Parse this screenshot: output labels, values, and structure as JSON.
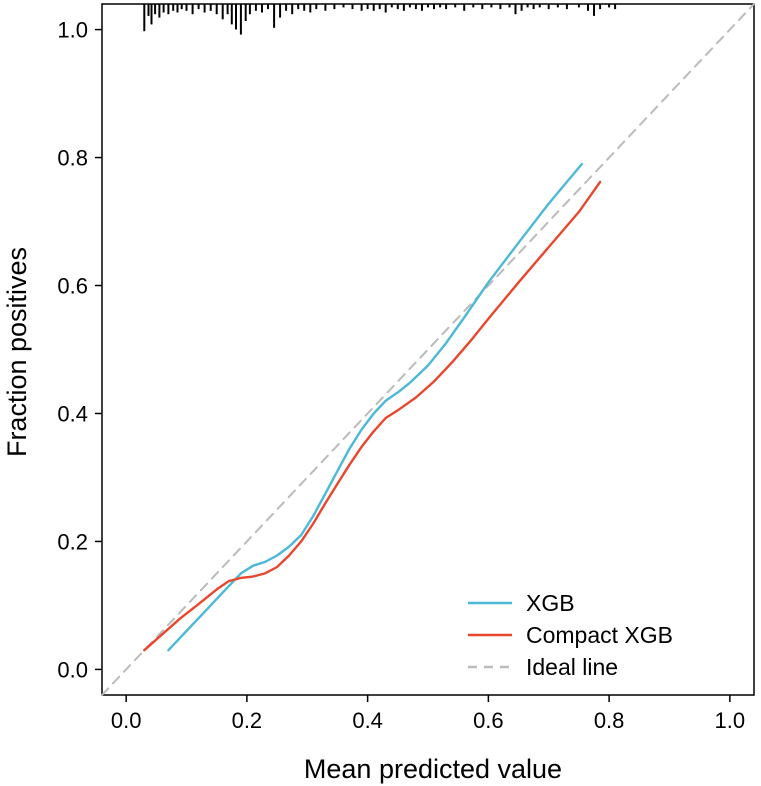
{
  "chart_data": {
    "type": "line",
    "xlabel": "Mean predicted value",
    "ylabel": "Fraction positives",
    "xlim": [
      -0.04,
      1.04
    ],
    "ylim": [
      -0.04,
      1.04
    ],
    "x_ticks": [
      "0.0",
      "0.2",
      "0.4",
      "0.6",
      "0.8",
      "1.0"
    ],
    "y_ticks": [
      "0.0",
      "0.2",
      "0.4",
      "0.6",
      "0.8",
      "1.0"
    ],
    "grid": false,
    "legend_position": "bottom-right",
    "series": [
      {
        "name": "XGB",
        "color": "#4db8d8",
        "points": [
          [
            0.07,
            0.03
          ],
          [
            0.1,
            0.06
          ],
          [
            0.13,
            0.09
          ],
          [
            0.16,
            0.12
          ],
          [
            0.19,
            0.15
          ],
          [
            0.21,
            0.162
          ],
          [
            0.23,
            0.168
          ],
          [
            0.25,
            0.178
          ],
          [
            0.27,
            0.192
          ],
          [
            0.29,
            0.21
          ],
          [
            0.31,
            0.24
          ],
          [
            0.33,
            0.275
          ],
          [
            0.35,
            0.31
          ],
          [
            0.37,
            0.345
          ],
          [
            0.39,
            0.375
          ],
          [
            0.41,
            0.4
          ],
          [
            0.43,
            0.42
          ],
          [
            0.45,
            0.433
          ],
          [
            0.47,
            0.448
          ],
          [
            0.5,
            0.475
          ],
          [
            0.53,
            0.51
          ],
          [
            0.56,
            0.55
          ],
          [
            0.6,
            0.605
          ],
          [
            0.65,
            0.667
          ],
          [
            0.7,
            0.728
          ],
          [
            0.755,
            0.79
          ]
        ]
      },
      {
        "name": "Compact XGB",
        "color": "#e8472e",
        "points": [
          [
            0.03,
            0.03
          ],
          [
            0.06,
            0.055
          ],
          [
            0.09,
            0.08
          ],
          [
            0.12,
            0.102
          ],
          [
            0.15,
            0.125
          ],
          [
            0.17,
            0.138
          ],
          [
            0.19,
            0.143
          ],
          [
            0.21,
            0.145
          ],
          [
            0.23,
            0.15
          ],
          [
            0.25,
            0.16
          ],
          [
            0.27,
            0.178
          ],
          [
            0.29,
            0.2
          ],
          [
            0.31,
            0.228
          ],
          [
            0.33,
            0.26
          ],
          [
            0.35,
            0.29
          ],
          [
            0.37,
            0.32
          ],
          [
            0.39,
            0.348
          ],
          [
            0.41,
            0.372
          ],
          [
            0.43,
            0.393
          ],
          [
            0.45,
            0.405
          ],
          [
            0.48,
            0.425
          ],
          [
            0.51,
            0.45
          ],
          [
            0.54,
            0.48
          ],
          [
            0.57,
            0.513
          ],
          [
            0.6,
            0.548
          ],
          [
            0.65,
            0.605
          ],
          [
            0.7,
            0.66
          ],
          [
            0.75,
            0.715
          ],
          [
            0.785,
            0.762
          ]
        ]
      },
      {
        "name": "Ideal line",
        "color": "#bbbbbb",
        "dashed": true,
        "points": [
          [
            -0.04,
            -0.04
          ],
          [
            1.04,
            1.04
          ]
        ]
      }
    ],
    "rug_color": "#000000",
    "rug": [
      {
        "x": 0.03,
        "len": 0.8
      },
      {
        "x": 0.037,
        "len": 0.35
      },
      {
        "x": 0.042,
        "len": 0.6
      },
      {
        "x": 0.048,
        "len": 0.3
      },
      {
        "x": 0.055,
        "len": 0.4
      },
      {
        "x": 0.062,
        "len": 0.25
      },
      {
        "x": 0.07,
        "len": 0.3
      },
      {
        "x": 0.078,
        "len": 0.2
      },
      {
        "x": 0.085,
        "len": 0.25
      },
      {
        "x": 0.092,
        "len": 0.15
      },
      {
        "x": 0.1,
        "len": 0.2
      },
      {
        "x": 0.11,
        "len": 0.3
      },
      {
        "x": 0.12,
        "len": 0.15
      },
      {
        "x": 0.13,
        "len": 0.25
      },
      {
        "x": 0.14,
        "len": 0.2
      },
      {
        "x": 0.15,
        "len": 0.3
      },
      {
        "x": 0.16,
        "len": 0.45
      },
      {
        "x": 0.168,
        "len": 0.3
      },
      {
        "x": 0.175,
        "len": 0.6
      },
      {
        "x": 0.182,
        "len": 0.75
      },
      {
        "x": 0.19,
        "len": 0.9
      },
      {
        "x": 0.198,
        "len": 0.5
      },
      {
        "x": 0.205,
        "len": 0.3
      },
      {
        "x": 0.215,
        "len": 0.2
      },
      {
        "x": 0.225,
        "len": 0.25
      },
      {
        "x": 0.235,
        "len": 0.15
      },
      {
        "x": 0.245,
        "len": 0.7
      },
      {
        "x": 0.255,
        "len": 0.4
      },
      {
        "x": 0.265,
        "len": 0.2
      },
      {
        "x": 0.275,
        "len": 0.3
      },
      {
        "x": 0.285,
        "len": 0.15
      },
      {
        "x": 0.295,
        "len": 0.2
      },
      {
        "x": 0.305,
        "len": 0.25
      },
      {
        "x": 0.315,
        "len": 0.15
      },
      {
        "x": 0.33,
        "len": 0.2
      },
      {
        "x": 0.345,
        "len": 0.15
      },
      {
        "x": 0.36,
        "len": 0.1
      },
      {
        "x": 0.375,
        "len": 0.15
      },
      {
        "x": 0.39,
        "len": 0.2
      },
      {
        "x": 0.4,
        "len": 0.15
      },
      {
        "x": 0.41,
        "len": 0.2
      },
      {
        "x": 0.42,
        "len": 0.15
      },
      {
        "x": 0.43,
        "len": 0.25
      },
      {
        "x": 0.44,
        "len": 0.1
      },
      {
        "x": 0.45,
        "len": 0.15
      },
      {
        "x": 0.46,
        "len": 0.2
      },
      {
        "x": 0.47,
        "len": 0.1
      },
      {
        "x": 0.48,
        "len": 0.15
      },
      {
        "x": 0.49,
        "len": 0.2
      },
      {
        "x": 0.5,
        "len": 0.1
      },
      {
        "x": 0.51,
        "len": 0.15
      },
      {
        "x": 0.52,
        "len": 0.1
      },
      {
        "x": 0.53,
        "len": 0.15
      },
      {
        "x": 0.545,
        "len": 0.1
      },
      {
        "x": 0.56,
        "len": 0.2
      },
      {
        "x": 0.575,
        "len": 0.1
      },
      {
        "x": 0.59,
        "len": 0.15
      },
      {
        "x": 0.605,
        "len": 0.1
      },
      {
        "x": 0.62,
        "len": 0.15
      },
      {
        "x": 0.635,
        "len": 0.1
      },
      {
        "x": 0.645,
        "len": 0.3
      },
      {
        "x": 0.655,
        "len": 0.2
      },
      {
        "x": 0.665,
        "len": 0.1
      },
      {
        "x": 0.675,
        "len": 0.15
      },
      {
        "x": 0.685,
        "len": 0.1
      },
      {
        "x": 0.7,
        "len": 0.15
      },
      {
        "x": 0.715,
        "len": 0.1
      },
      {
        "x": 0.73,
        "len": 0.15
      },
      {
        "x": 0.75,
        "len": 0.1
      },
      {
        "x": 0.765,
        "len": 0.2
      },
      {
        "x": 0.775,
        "len": 0.35
      },
      {
        "x": 0.785,
        "len": 0.15
      },
      {
        "x": 0.8,
        "len": 0.1
      },
      {
        "x": 0.81,
        "len": 0.15
      }
    ]
  }
}
